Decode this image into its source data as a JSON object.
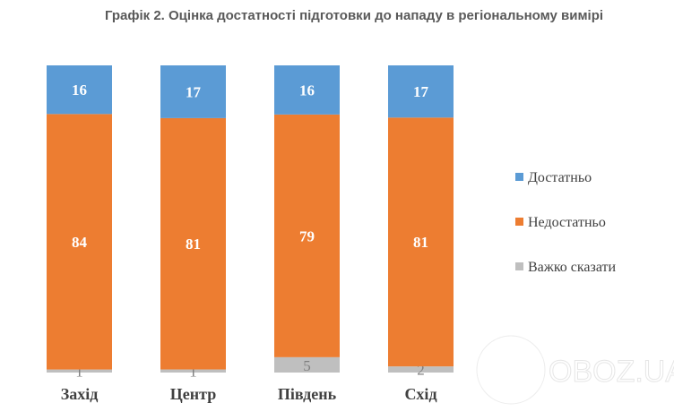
{
  "chart_data": {
    "type": "bar",
    "stacked": true,
    "title": "Графік 2. Оцінка достатності підготовки до нападу в регіональному вимірі",
    "categories": [
      "Захід",
      "Центр",
      "Південь",
      "Схід"
    ],
    "series": [
      {
        "name": "Важко сказати",
        "values": [
          1,
          1,
          5,
          2
        ],
        "color": "#bfbfbf"
      },
      {
        "name": "Недостатньо",
        "values": [
          84,
          81,
          79,
          81
        ],
        "color": "#ed7d31"
      },
      {
        "name": "Достатньо",
        "values": [
          16,
          17,
          16,
          17
        ],
        "color": "#5b9bd5"
      }
    ],
    "legend_order": [
      "Достатньо",
      "Недостатньо",
      "Важко сказати"
    ],
    "legend_position": "right",
    "grid": false,
    "data_labels": true
  },
  "watermark": "OBOZ.UA"
}
